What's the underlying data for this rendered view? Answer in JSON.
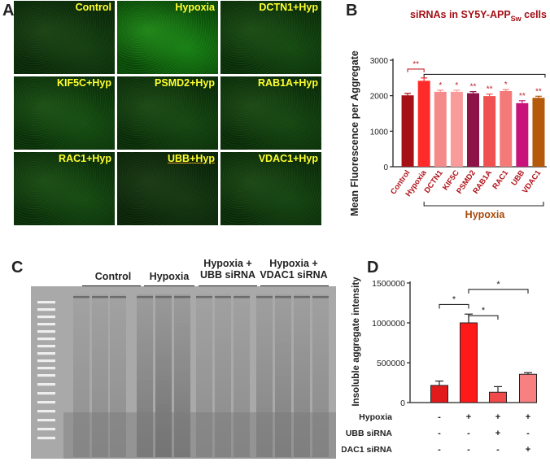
{
  "panels": {
    "a": "A",
    "b": "B",
    "c": "C",
    "d": "D"
  },
  "tiles": [
    {
      "label": "Control",
      "intensity": 0.28
    },
    {
      "label": "Hypoxia",
      "intensity": 0.72
    },
    {
      "label": "DCTN1+Hyp",
      "intensity": 0.35
    },
    {
      "label": "KIF5C+Hyp",
      "intensity": 0.38
    },
    {
      "label": "PSMD2+Hyp",
      "intensity": 0.33
    },
    {
      "label": "RAB1A+Hyp",
      "intensity": 0.33
    },
    {
      "label": "RAC1+Hyp",
      "intensity": 0.36
    },
    {
      "label": "UBB+Hyp",
      "intensity": 0.22
    },
    {
      "label": "VDAC1+Hyp",
      "intensity": 0.32
    }
  ],
  "gel": {
    "groups": [
      {
        "line1": "Control",
        "line2": ""
      },
      {
        "line1": "Hypoxia",
        "line2": ""
      },
      {
        "line1": "Hypoxia +",
        "line2": "UBB siRNA"
      },
      {
        "line1": "Hypoxia +",
        "line2": "VDAC1 siRNA"
      }
    ]
  },
  "chart_data": [
    {
      "type": "bar",
      "title_main": "siRNAs in SY5Y-APP",
      "title_sub": "Sw",
      "title_tail": " cells",
      "ylabel": "Mean Fluorescence per Aggregate",
      "ylim": [
        0,
        3000
      ],
      "yticks": [
        "0",
        "1000",
        "2000",
        "3000"
      ],
      "categories": [
        "Control",
        "Hypoxia",
        "DCTN1",
        "KIF5C",
        "PSMD2",
        "RAB1A",
        "RAC1",
        "UBB",
        "VDAC1"
      ],
      "values": [
        2010,
        2420,
        2110,
        2110,
        2070,
        1990,
        2130,
        1790,
        1940
      ],
      "errors": [
        55,
        80,
        45,
        45,
        45,
        55,
        40,
        70,
        45
      ],
      "colors": [
        "#a50f15",
        "#ff2b2b",
        "#f58a8a",
        "#fa9b9b",
        "#8c1248",
        "#f05050",
        "#f47a7a",
        "#c8147a",
        "#b45a0a"
      ],
      "significance": [
        "",
        "",
        "*",
        "*",
        "**",
        "**",
        "*",
        "**",
        "**"
      ],
      "control_vs_hypoxia": "**",
      "group_label": "Hypoxia"
    },
    {
      "type": "bar",
      "ylabel": "Insoluble aggregate intensity",
      "ylim": [
        0,
        1500000
      ],
      "yticks": [
        "0",
        "500000",
        "1000000",
        "1500000"
      ],
      "values": [
        215000,
        1000000,
        130000,
        355000
      ],
      "errors": [
        55000,
        110000,
        70000,
        20000
      ],
      "colors": [
        "#e31a1c",
        "#ff1a1a",
        "#f04a4a",
        "#f88080"
      ],
      "brackets": [
        "*",
        "*",
        "*"
      ],
      "conditions": [
        {
          "name": "Hypoxia",
          "marks": [
            "-",
            "+",
            "+",
            "+"
          ]
        },
        {
          "name": "UBB siRNA",
          "marks": [
            "-",
            "-",
            "+",
            "-"
          ]
        },
        {
          "name": "VDAC1 siRNA",
          "marks": [
            "-",
            "-",
            "-",
            "+"
          ]
        }
      ]
    }
  ]
}
